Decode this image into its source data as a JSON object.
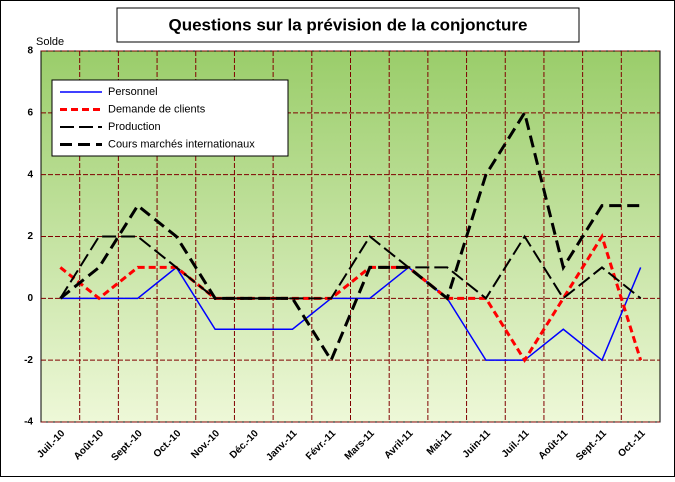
{
  "chart_data": {
    "type": "line",
    "title": "Questions sur la prévision de la conjoncture",
    "y_label": "Solde",
    "categories": [
      "Juil.-10",
      "Août-10",
      "Sept.-10",
      "Oct.-10",
      "Nov.-10",
      "Déc.-10",
      "Janv.-11",
      "Févr.-11",
      "Mars-11",
      "Avril-11",
      "Mai-11",
      "Juin-11",
      "Juil.-11",
      "Août-11",
      "Sept.-11",
      "Oct.-11"
    ],
    "series": [
      {
        "name": "Personnel",
        "color": "#0000ff",
        "style": "solid",
        "width": 1.5,
        "values": [
          0,
          0,
          0,
          1,
          -1,
          -1,
          -1,
          0,
          0,
          1,
          0,
          -2,
          -2,
          -1,
          -2,
          1
        ]
      },
      {
        "name": "Demande de clients",
        "color": "#ff0000",
        "style": "dashed",
        "width": 3,
        "values": [
          1,
          0,
          1,
          1,
          0,
          0,
          0,
          0,
          1,
          1,
          0,
          0,
          -2,
          0,
          2,
          -2
        ]
      },
      {
        "name": "Production",
        "color": "#000000",
        "style": "longdash",
        "width": 2,
        "values": [
          0,
          2,
          2,
          1,
          0,
          0,
          0,
          0,
          2,
          1,
          1,
          0,
          2,
          0,
          1,
          0
        ]
      },
      {
        "name": "Cours marchés internationaux",
        "color": "#000000",
        "style": "heavydash",
        "width": 3,
        "values": [
          0,
          1,
          3,
          2,
          0,
          0,
          0,
          -2,
          1,
          1,
          0,
          4,
          6,
          1,
          3,
          3
        ]
      }
    ],
    "ylim": [
      -4,
      8
    ],
    "yticks": [
      -4,
      -2,
      0,
      2,
      4,
      6,
      8
    ],
    "grid": true,
    "legend": "top-left"
  }
}
